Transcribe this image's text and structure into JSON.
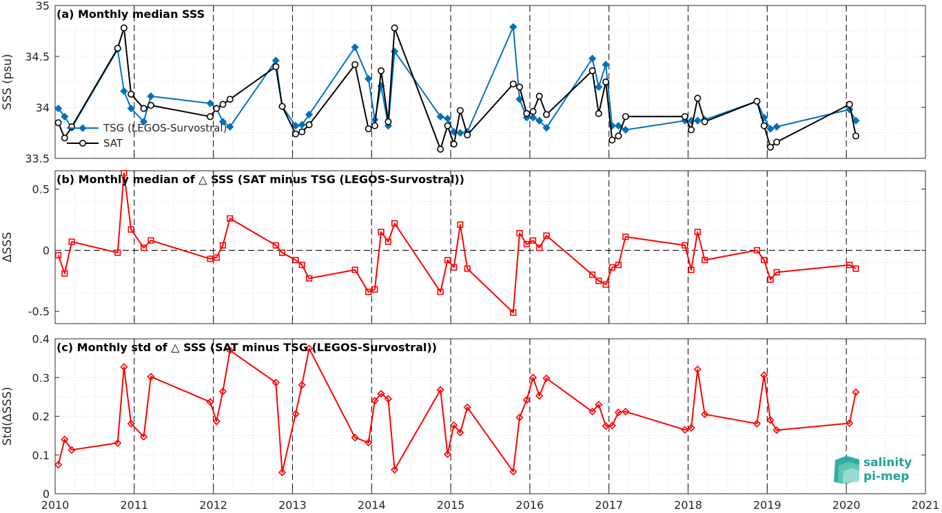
{
  "logo": {
    "line1": "salinity",
    "line2": "pi-mep",
    "color": "#1fa493"
  },
  "colors": {
    "tsg": "#0072bd",
    "sat": "#000000",
    "delta": "#ff0000"
  },
  "chart_data": [
    {
      "type": "line",
      "title": "(a) Monthly median SSS",
      "ylabel": "SSS (psu)",
      "ylim": [
        33.5,
        35
      ],
      "yticks": [
        33.5,
        34,
        34.5,
        35
      ],
      "ytick_labels": [
        "33.5",
        "34",
        "34.5",
        "35"
      ],
      "xlim": [
        2010,
        2021
      ],
      "xticks": [
        2010,
        2011,
        2012,
        2013,
        2014,
        2015,
        2016,
        2017,
        2018,
        2019,
        2020,
        2021
      ],
      "xtick_labels": [],
      "grid": true,
      "legend": "lower-left",
      "series": [
        {
          "name": "TSG (LEGOS-Survostral)",
          "marker": "diamond",
          "x": [
            2010.04,
            2010.12,
            2010.21,
            2010.79,
            2010.87,
            2010.96,
            2011.12,
            2011.21,
            2011.96,
            2012.04,
            2012.12,
            2012.21,
            2012.79,
            2012.87,
            2013.04,
            2013.12,
            2013.21,
            2013.79,
            2013.96,
            2014.04,
            2014.12,
            2014.21,
            2014.29,
            2014.87,
            2014.96,
            2015.04,
            2015.12,
            2015.21,
            2015.79,
            2015.87,
            2015.96,
            2016.04,
            2016.12,
            2016.21,
            2016.79,
            2016.87,
            2016.96,
            2017.04,
            2017.12,
            2017.21,
            2017.96,
            2018.04,
            2018.12,
            2018.21,
            2018.87,
            2018.96,
            2019.04,
            2019.12,
            2020.04,
            2020.12
          ],
          "y": [
            33.99,
            33.91,
            33.8,
            34.57,
            34.16,
            33.99,
            33.86,
            34.11,
            34.04,
            33.99,
            33.86,
            33.81,
            34.46,
            34.01,
            33.82,
            33.83,
            33.93,
            34.59,
            34.28,
            33.88,
            34.21,
            33.82,
            34.55,
            33.91,
            33.89,
            33.76,
            33.75,
            33.76,
            34.79,
            34.08,
            33.9,
            33.9,
            33.87,
            33.8,
            34.48,
            34.2,
            34.42,
            33.82,
            33.82,
            33.78,
            33.87,
            33.87,
            33.87,
            33.88,
            34.06,
            33.9,
            33.79,
            33.81,
            33.98,
            33.87
          ]
        },
        {
          "name": "SAT",
          "marker": "circle",
          "x": [
            2010.04,
            2010.12,
            2010.21,
            2010.79,
            2010.87,
            2010.96,
            2011.12,
            2011.21,
            2011.96,
            2012.04,
            2012.12,
            2012.21,
            2012.79,
            2012.87,
            2013.04,
            2013.12,
            2013.21,
            2013.79,
            2013.96,
            2014.04,
            2014.12,
            2014.21,
            2014.29,
            2014.87,
            2014.96,
            2015.04,
            2015.12,
            2015.21,
            2015.79,
            2015.87,
            2015.96,
            2016.04,
            2016.12,
            2016.21,
            2016.79,
            2016.87,
            2016.96,
            2017.04,
            2017.12,
            2017.21,
            2017.96,
            2018.04,
            2018.12,
            2018.21,
            2018.87,
            2018.96,
            2019.04,
            2019.12,
            2020.04,
            2020.12
          ],
          "y": [
            33.85,
            33.7,
            33.81,
            34.58,
            34.78,
            34.13,
            33.99,
            34.02,
            33.91,
            33.99,
            34.03,
            34.08,
            34.4,
            34.01,
            33.74,
            33.76,
            33.83,
            34.42,
            33.79,
            33.82,
            34.36,
            33.86,
            34.78,
            33.59,
            33.82,
            33.64,
            33.97,
            33.73,
            34.23,
            34.2,
            33.94,
            33.96,
            34.11,
            33.93,
            34.36,
            33.94,
            34.25,
            33.68,
            33.72,
            33.91,
            33.91,
            33.78,
            34.09,
            33.86,
            34.06,
            33.82,
            33.61,
            33.66,
            34.03,
            33.72
          ]
        }
      ]
    },
    {
      "type": "line",
      "title": "(b) Monthly median of △ SSS (SAT minus TSG (LEGOS-Survostral))",
      "ylabel": "ΔSSS",
      "ylim": [
        -0.6,
        0.65
      ],
      "yticks": [
        -0.5,
        0,
        0.5
      ],
      "ytick_labels": [
        "-0.5",
        "0",
        "0.5"
      ],
      "xlim": [
        2010,
        2021
      ],
      "xticks": [
        2010,
        2011,
        2012,
        2013,
        2014,
        2015,
        2016,
        2017,
        2018,
        2019,
        2020,
        2021
      ],
      "xtick_labels": [],
      "grid": true,
      "zero_line": true,
      "series": [
        {
          "marker": "square",
          "x": [
            2010.04,
            2010.12,
            2010.21,
            2010.79,
            2010.87,
            2010.96,
            2011.12,
            2011.21,
            2011.96,
            2012.04,
            2012.12,
            2012.21,
            2012.79,
            2012.87,
            2013.04,
            2013.12,
            2013.21,
            2013.79,
            2013.96,
            2014.04,
            2014.12,
            2014.21,
            2014.29,
            2014.87,
            2014.96,
            2015.04,
            2015.12,
            2015.21,
            2015.79,
            2015.87,
            2015.96,
            2016.04,
            2016.12,
            2016.21,
            2016.79,
            2016.87,
            2016.96,
            2017.04,
            2017.12,
            2017.21,
            2017.96,
            2018.04,
            2018.12,
            2018.21,
            2018.87,
            2018.96,
            2019.04,
            2019.12,
            2020.04,
            2020.12
          ],
          "y": [
            -0.04,
            -0.19,
            0.07,
            -0.02,
            0.63,
            0.17,
            0.02,
            0.08,
            -0.07,
            -0.06,
            0.04,
            0.26,
            0.04,
            -0.02,
            -0.08,
            -0.12,
            -0.23,
            -0.16,
            -0.34,
            -0.32,
            0.15,
            0.07,
            0.22,
            -0.34,
            -0.08,
            -0.14,
            0.21,
            -0.15,
            -0.51,
            0.14,
            0.05,
            0.08,
            0.02,
            0.12,
            -0.2,
            -0.25,
            -0.28,
            -0.14,
            -0.12,
            0.11,
            0.04,
            -0.16,
            0.15,
            -0.08,
            0.0,
            -0.08,
            -0.24,
            -0.18,
            -0.12,
            -0.15
          ]
        }
      ]
    },
    {
      "type": "line",
      "title": "(c) Monthly std of △ SSS (SAT minus TSG (LEGOS-Survostral))",
      "ylabel": "Std(ΔSSS)",
      "ylim": [
        0,
        0.4
      ],
      "yticks": [
        0,
        0.1,
        0.2,
        0.3,
        0.4
      ],
      "ytick_labels": [
        "0",
        "0.1",
        "0.2",
        "0.3",
        "0.4"
      ],
      "xlim": [
        2010,
        2021
      ],
      "xticks": [
        2010,
        2011,
        2012,
        2013,
        2014,
        2015,
        2016,
        2017,
        2018,
        2019,
        2020,
        2021
      ],
      "xtick_labels": [
        "2010",
        "2011",
        "2012",
        "2013",
        "2014",
        "2015",
        "2016",
        "2017",
        "2018",
        "2019",
        "2020",
        "2021"
      ],
      "grid": true,
      "series": [
        {
          "marker": "diamond",
          "x": [
            2010.04,
            2010.12,
            2010.21,
            2010.79,
            2010.87,
            2010.96,
            2011.12,
            2011.21,
            2011.96,
            2012.04,
            2012.12,
            2012.21,
            2012.79,
            2012.87,
            2013.04,
            2013.12,
            2013.21,
            2013.79,
            2013.96,
            2014.04,
            2014.12,
            2014.21,
            2014.29,
            2014.87,
            2014.96,
            2015.04,
            2015.12,
            2015.21,
            2015.79,
            2015.87,
            2015.96,
            2016.04,
            2016.12,
            2016.21,
            2016.79,
            2016.87,
            2016.96,
            2017.04,
            2017.12,
            2017.21,
            2017.96,
            2018.04,
            2018.12,
            2018.21,
            2018.87,
            2018.96,
            2019.04,
            2019.12,
            2020.04,
            2020.12
          ],
          "y": [
            0.075,
            0.14,
            0.113,
            0.131,
            0.327,
            0.181,
            0.147,
            0.302,
            0.237,
            0.187,
            0.264,
            0.37,
            0.287,
            0.055,
            0.206,
            0.281,
            0.375,
            0.145,
            0.132,
            0.24,
            0.258,
            0.245,
            0.062,
            0.268,
            0.102,
            0.177,
            0.158,
            0.223,
            0.057,
            0.197,
            0.242,
            0.3,
            0.253,
            0.298,
            0.212,
            0.23,
            0.175,
            0.176,
            0.21,
            0.212,
            0.165,
            0.17,
            0.321,
            0.205,
            0.181,
            0.306,
            0.19,
            0.164,
            0.182,
            0.262
          ]
        }
      ]
    }
  ]
}
